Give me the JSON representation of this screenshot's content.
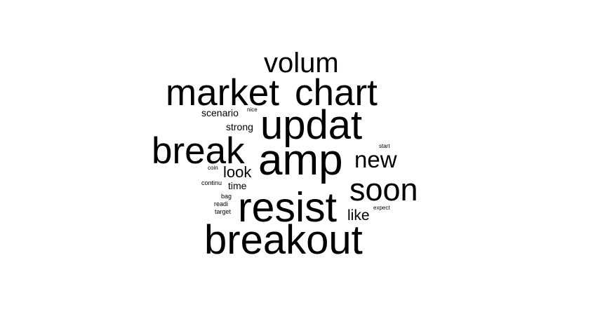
{
  "word_cloud": {
    "color": "#000000",
    "words": [
      {
        "text": "volum"
      },
      {
        "text": "market"
      },
      {
        "text": "chart"
      },
      {
        "text": "scenario"
      },
      {
        "text": "nice"
      },
      {
        "text": "updat"
      },
      {
        "text": "strong"
      },
      {
        "text": "break"
      },
      {
        "text": "amp"
      },
      {
        "text": "new"
      },
      {
        "text": "start"
      },
      {
        "text": "coin"
      },
      {
        "text": "look"
      },
      {
        "text": "continu"
      },
      {
        "text": "time"
      },
      {
        "text": "soon"
      },
      {
        "text": "bag"
      },
      {
        "text": "readi"
      },
      {
        "text": "target"
      },
      {
        "text": "resist"
      },
      {
        "text": "like"
      },
      {
        "text": "expect"
      },
      {
        "text": "breakout"
      }
    ]
  }
}
